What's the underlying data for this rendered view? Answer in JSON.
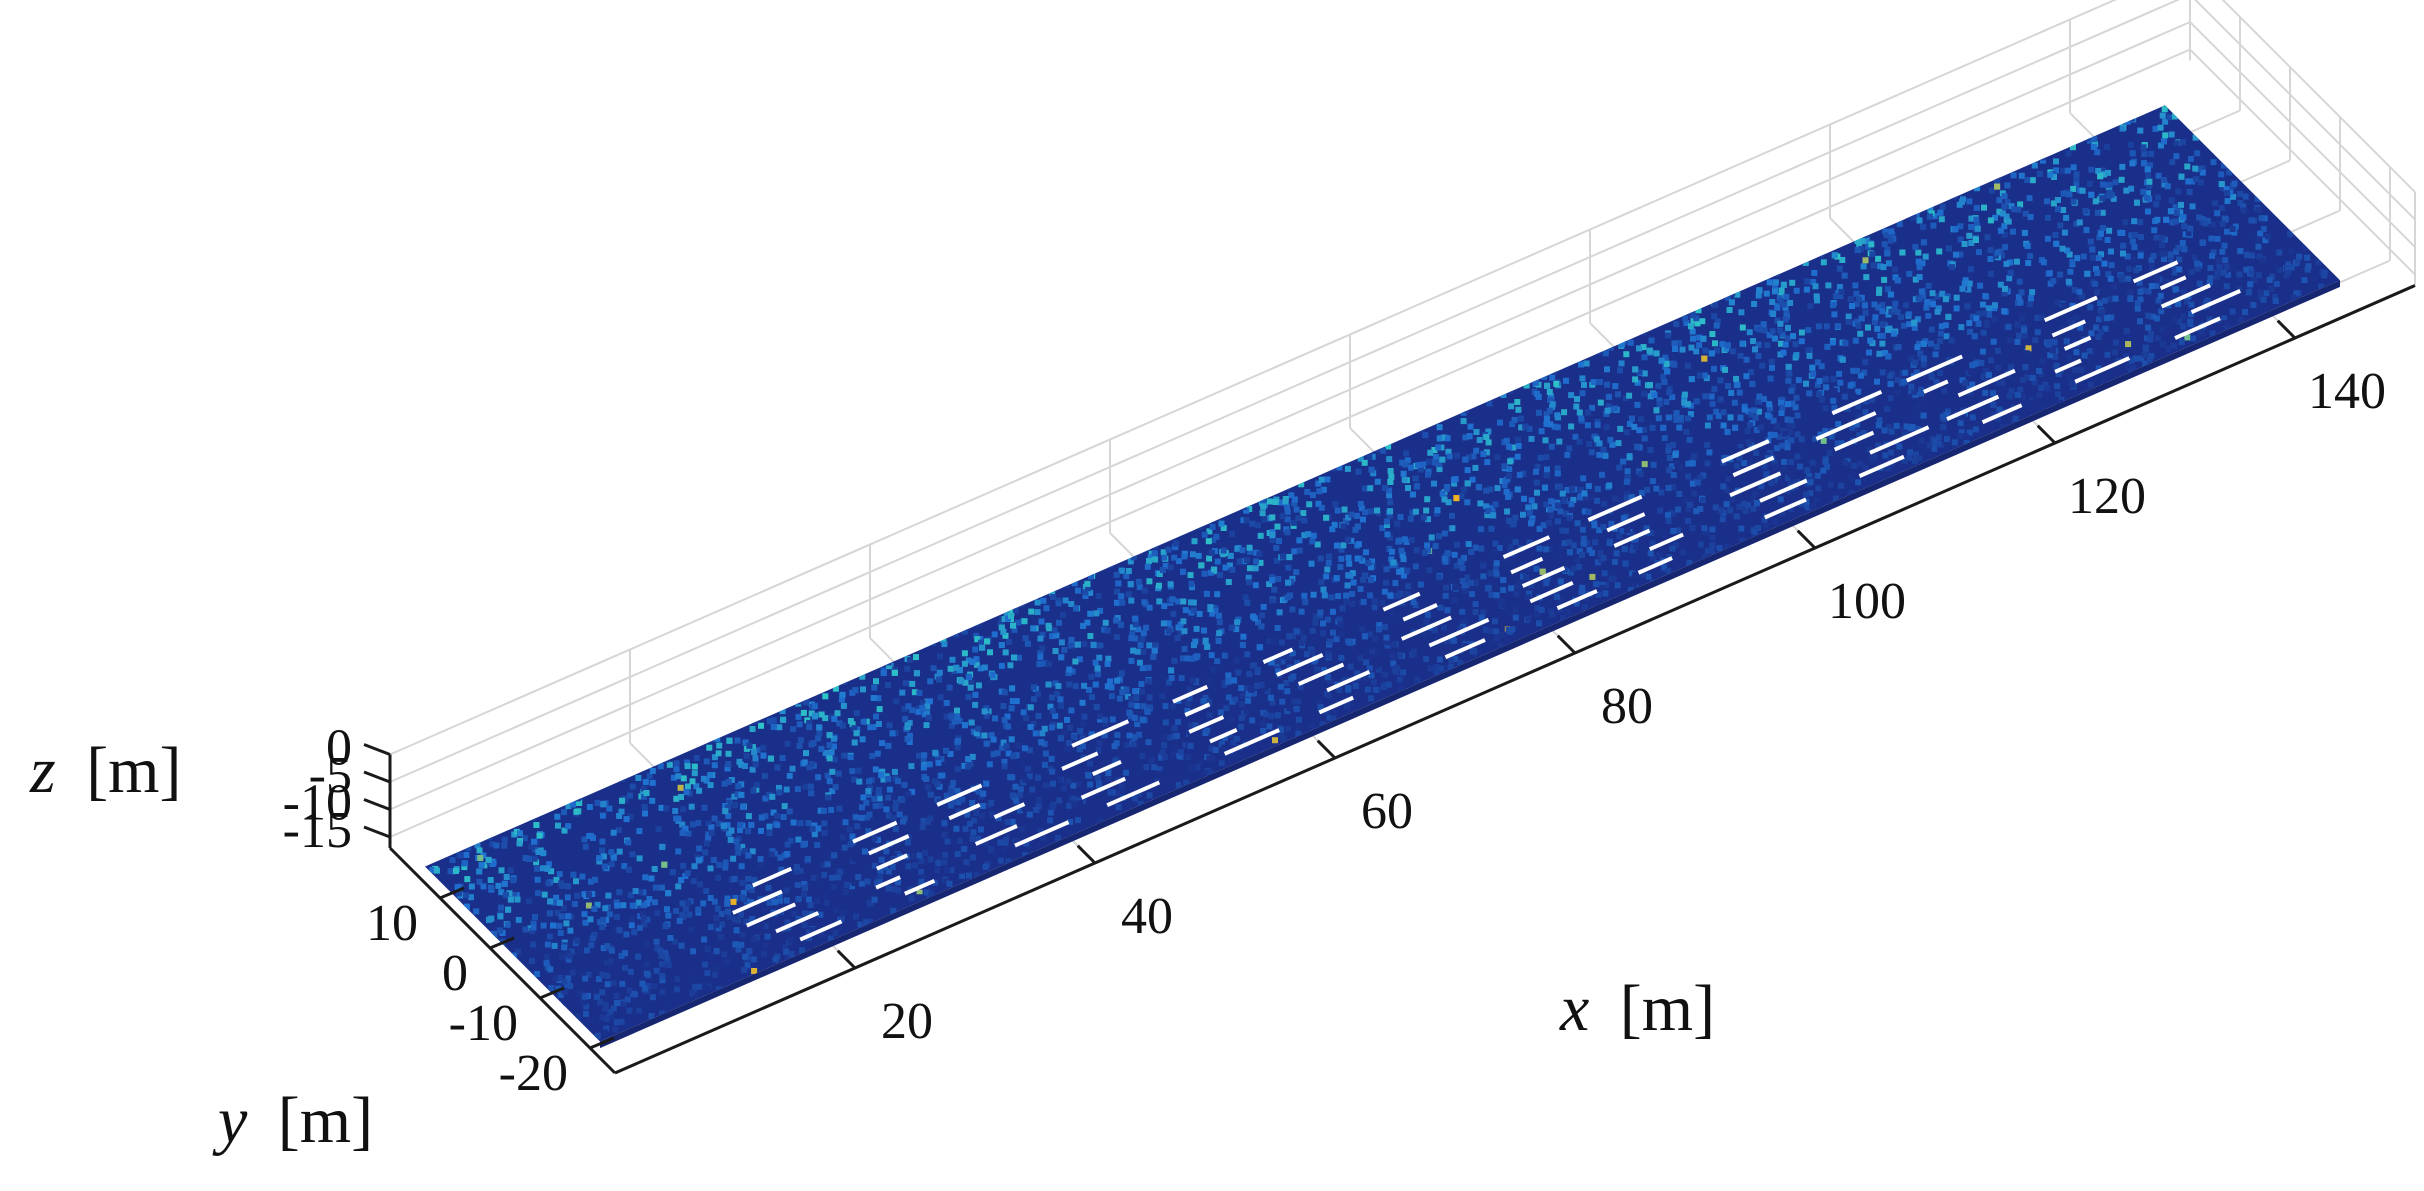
{
  "chart_data": {
    "type": "scatter",
    "subtype": "3d-point-cloud",
    "title": "",
    "xlabel": {
      "var": "x",
      "unit": "[m]"
    },
    "ylabel": {
      "var": "y",
      "unit": "[m]"
    },
    "zlabel": {
      "var": "z",
      "unit": "[m]"
    },
    "xlim": [
      0,
      150
    ],
    "ylim": [
      -25,
      20
    ],
    "zlim": [
      -17,
      0
    ],
    "xticks": [
      "20",
      "40",
      "60",
      "80",
      "100",
      "120",
      "140"
    ],
    "yticks": [
      "10",
      "0",
      "-10",
      "-20"
    ],
    "zticks": [
      "0",
      "-5",
      "-10",
      "-15"
    ],
    "grid": true,
    "colormap": "parula",
    "colors": {
      "low": "#1a2f8a",
      "mid": "#1f6fd0",
      "high": "#2ec7c7",
      "peak": "#f0b020"
    },
    "point_cloud": {
      "x_range": [
        0,
        145
      ],
      "y_range": [
        -22,
        13
      ],
      "z_range": [
        -16,
        -14
      ],
      "description_hidden": true
    }
  }
}
